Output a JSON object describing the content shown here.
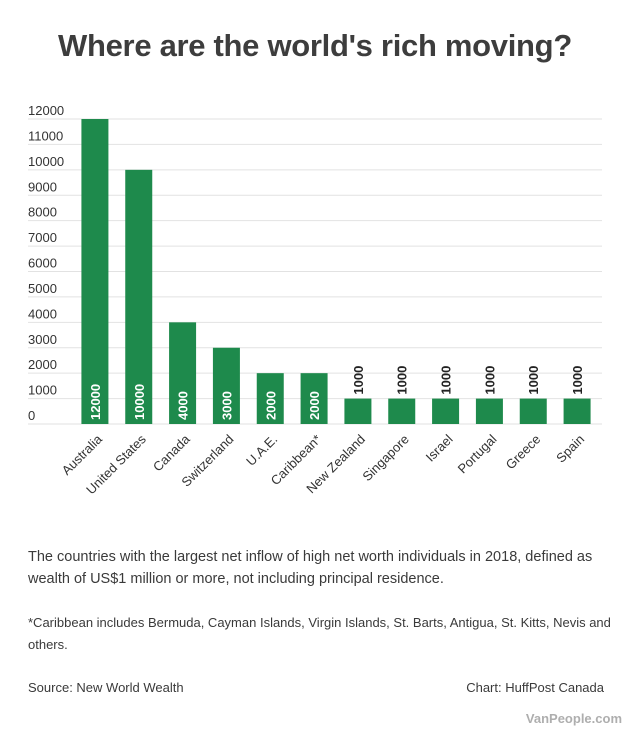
{
  "chart_data": {
    "type": "bar",
    "title": "Where are the world's rich moving?",
    "xlabel": "",
    "ylabel": "",
    "categories": [
      "Australia",
      "United States",
      "Canada",
      "Switzerland",
      "U.A.E.",
      "Caribbean*",
      "New Zealand",
      "Singapore",
      "Israel",
      "Portugal",
      "Greece",
      "Spain"
    ],
    "values": [
      12000,
      10000,
      4000,
      3000,
      2000,
      2000,
      1000,
      1000,
      1000,
      1000,
      1000,
      1000
    ],
    "ylim": [
      0,
      12000
    ],
    "yticks": [
      0,
      1000,
      2000,
      3000,
      4000,
      5000,
      6000,
      7000,
      8000,
      9000,
      10000,
      11000,
      12000
    ],
    "grid": true,
    "bar_color": "#1e8a4c",
    "data_labels": true,
    "legend": "none"
  },
  "caption": "The countries with the largest net inflow of high net worth individuals in 2018, defined as wealth of US$1 million or more, not including principal residence.",
  "footnote": "*Caribbean includes Bermuda, Cayman Islands, Virgin Islands, St. Barts, Antigua, St. Kitts, Nevis and others.",
  "source": "Source: New World Wealth",
  "credit": "Chart: HuffPost Canada",
  "watermark": "VanPeople.com"
}
